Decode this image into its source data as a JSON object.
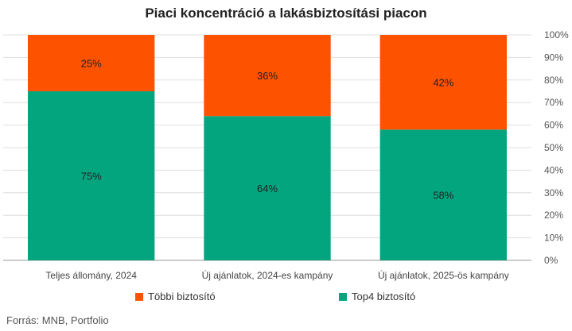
{
  "chart_data": {
    "type": "bar",
    "stacked": true,
    "title": "Piaci koncentráció a lakásbiztosítási piacon",
    "categories": [
      "Teljes állomány, 2024",
      "Új ajánlatok, 2024-es kampány",
      "Új ajánlatok, 2025-ös kampány"
    ],
    "series": [
      {
        "name": "Top4 biztosító",
        "color": "#03a57f",
        "values": [
          75,
          64,
          58
        ],
        "labels": [
          "75%",
          "64%",
          "58%"
        ]
      },
      {
        "name": "Többi biztosító",
        "color": "#fd5200",
        "values": [
          25,
          36,
          42
        ],
        "labels": [
          "25%",
          "36%",
          "42%"
        ]
      }
    ],
    "ylim": [
      0,
      100
    ],
    "yticks": [
      "0%",
      "10%",
      "20%",
      "30%",
      "40%",
      "50%",
      "60%",
      "70%",
      "80%",
      "90%",
      "100%"
    ],
    "y_axis_side": "right",
    "grid": true,
    "legend_position": "bottom",
    "xlabel": "",
    "ylabel": ""
  },
  "legend": [
    {
      "name": "Többi biztosító",
      "color": "#fd5200"
    },
    {
      "name": "Top4 biztosító",
      "color": "#03a57f"
    }
  ],
  "source": "Forrás: MNB, Portfolio"
}
